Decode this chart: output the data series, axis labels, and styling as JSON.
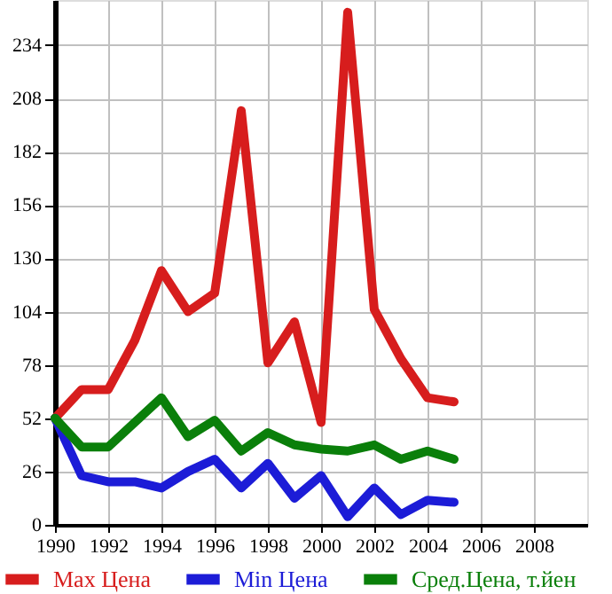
{
  "chart_data": {
    "type": "line",
    "x": [
      1990,
      1991,
      1992,
      1993,
      1994,
      1995,
      1996,
      1997,
      1998,
      1999,
      2000,
      2001,
      2002,
      2003,
      2004,
      2005
    ],
    "series": [
      {
        "name": "Max Цена",
        "color": "#d71d1d",
        "values": [
          52,
          66,
          66,
          90,
          124,
          104,
          113,
          202,
          79,
          99,
          50,
          250,
          105,
          81,
          62,
          60
        ]
      },
      {
        "name": "Min Цена",
        "color": "#1c1cd7",
        "values": [
          52,
          24,
          21,
          21,
          18,
          26,
          32,
          18,
          30,
          13,
          24,
          4,
          18,
          5,
          12,
          11
        ]
      },
      {
        "name": "Сред.Цена, т.йен",
        "color": "#0a7f0a",
        "values": [
          52,
          38,
          38,
          50,
          62,
          43,
          51,
          36,
          45,
          39,
          37,
          36,
          39,
          32,
          36,
          32
        ]
      }
    ],
    "xlim": [
      1990,
      2010
    ],
    "xticks": [
      1990,
      1992,
      1994,
      1996,
      1998,
      2000,
      2002,
      2004,
      2006,
      2008
    ],
    "ylim": [
      0,
      256
    ],
    "yticks": [
      0,
      26,
      52,
      78,
      104,
      130,
      156,
      182,
      208,
      234
    ],
    "grid": true,
    "legend": "bottom",
    "marker": "none",
    "line_style": "solid"
  }
}
